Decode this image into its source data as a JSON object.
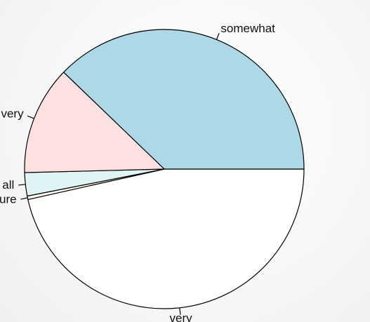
{
  "chart_data": {
    "type": "pie",
    "title": "",
    "slices": [
      {
        "label": "very",
        "value": 46.5,
        "color": "#ffffff"
      },
      {
        "label": "not sure",
        "value": 0.4,
        "color": "#fffef0"
      },
      {
        "label": "not at all",
        "value": 2.7,
        "color": "#e1f4f5"
      },
      {
        "label": "not very",
        "value": 12.6,
        "color": "#fde0e0"
      },
      {
        "label": "somewhat",
        "value": 37.8,
        "color": "#add8e6"
      }
    ],
    "start_angle_deg": 0,
    "direction": "clockwise",
    "legend": "none"
  }
}
